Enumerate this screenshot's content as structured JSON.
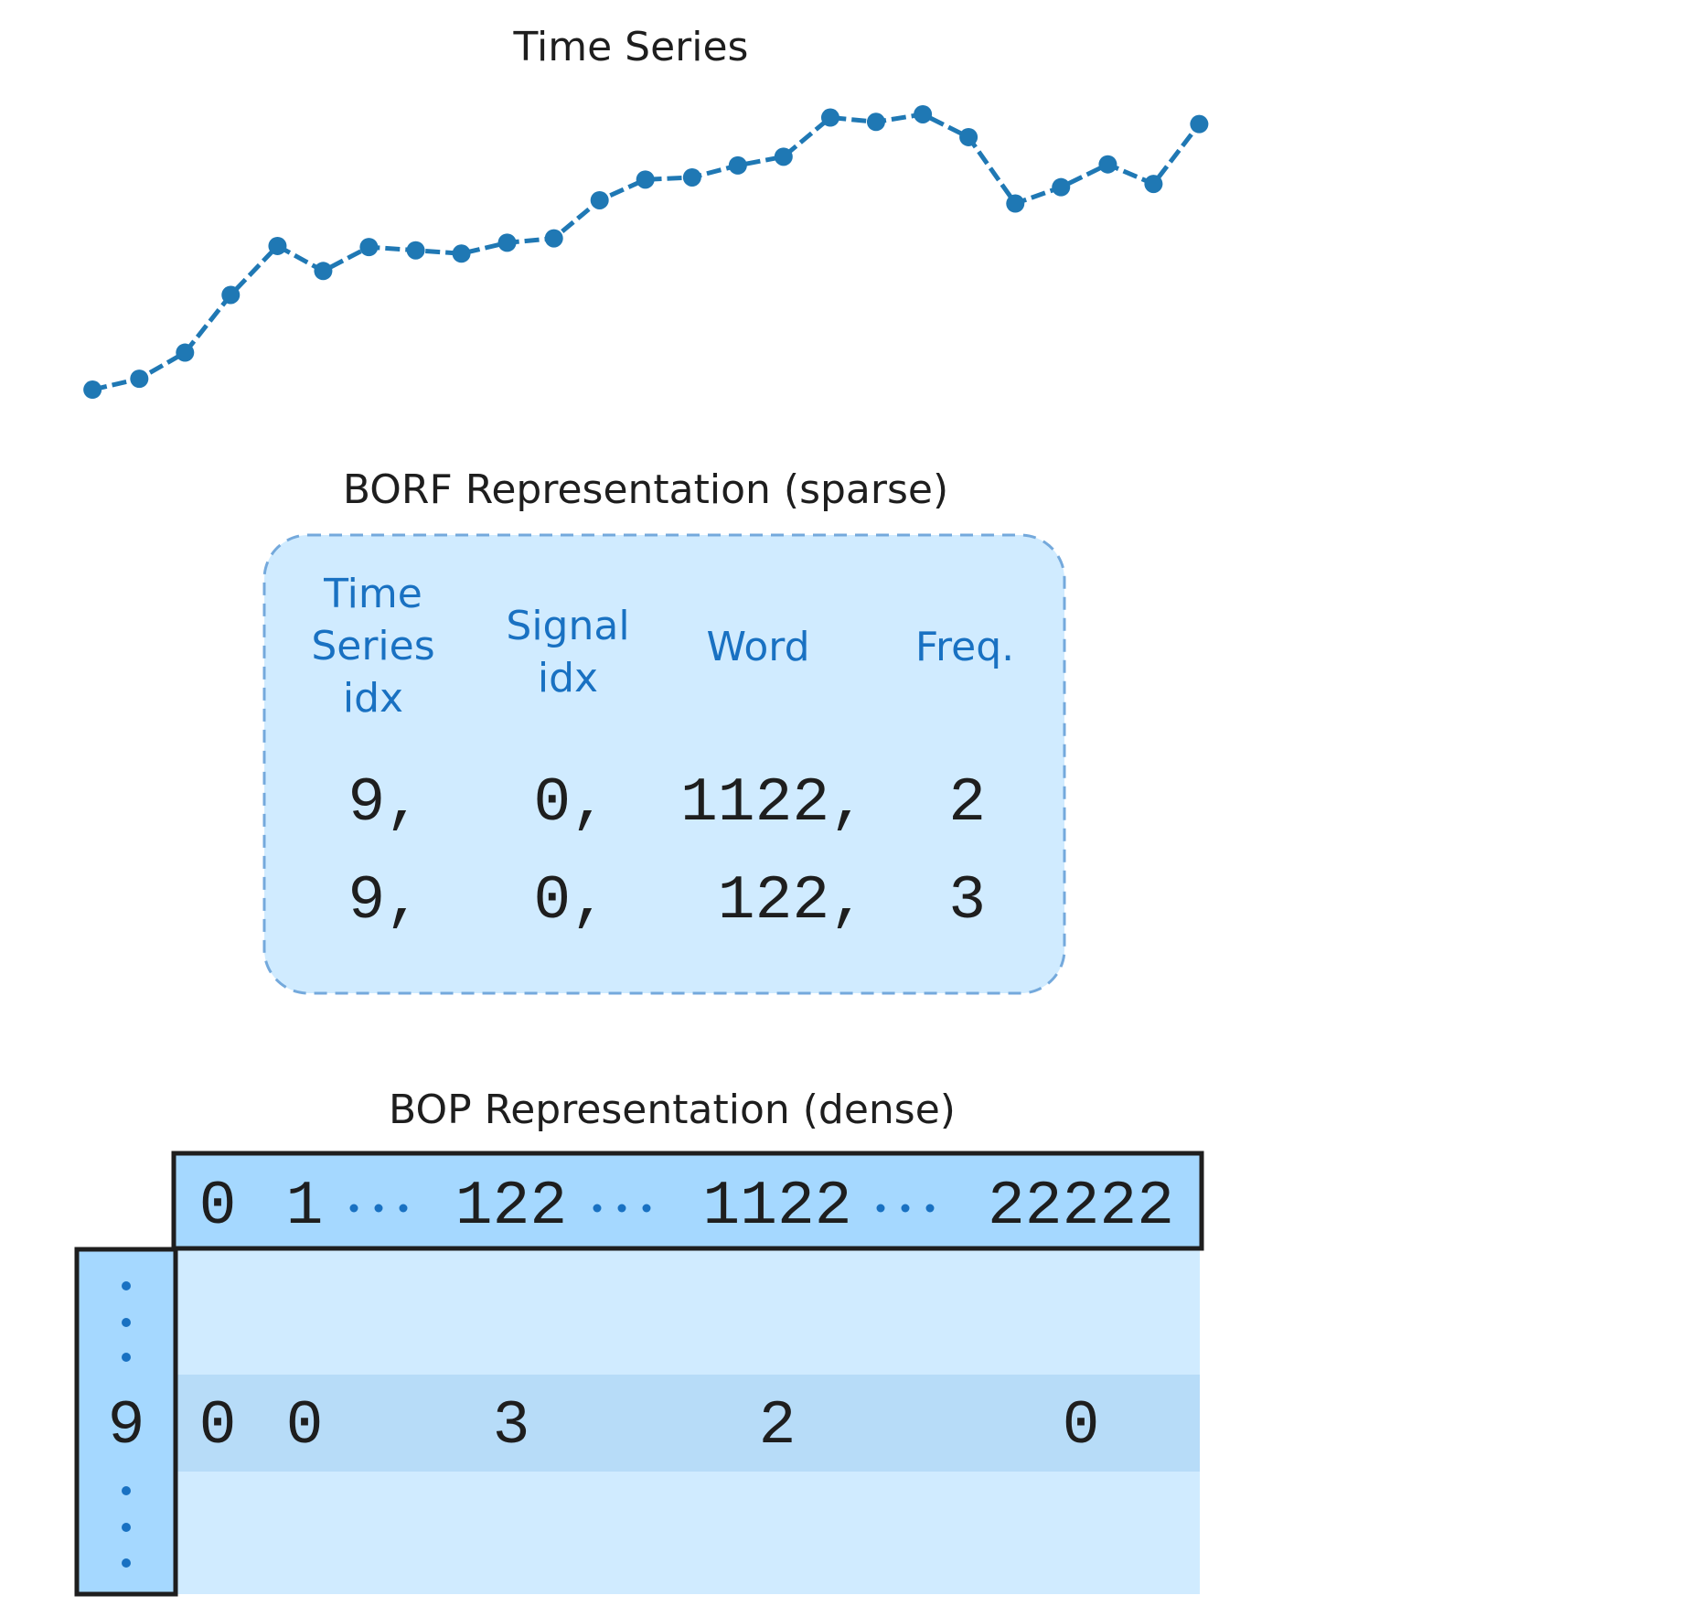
{
  "time_series": {
    "title": "Time Series"
  },
  "borf": {
    "title": "BORF Representation (sparse)",
    "headers": [
      "Time Series idx",
      "Signal idx",
      "Word",
      "Freq."
    ],
    "rows": [
      [
        "9,",
        "0,",
        "1122,",
        "2"
      ],
      [
        "9,",
        "0,",
        "122,",
        "3"
      ]
    ]
  },
  "bop": {
    "title": "BOP Representation (dense)",
    "columns": [
      "0",
      "1",
      "122",
      "1122",
      "22222"
    ],
    "row_index": "9",
    "row_values": [
      "0",
      "0",
      "3",
      "2",
      "0"
    ]
  }
}
